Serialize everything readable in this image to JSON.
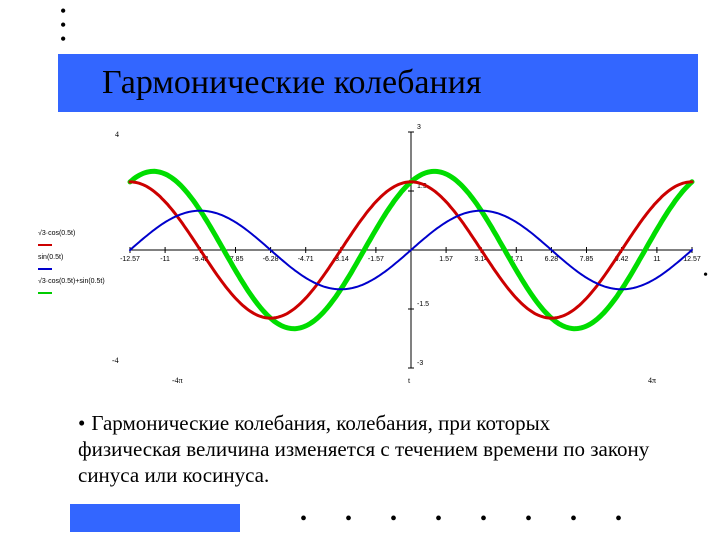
{
  "title": "Гармонические колебания",
  "description": "Гармонические колебания, колебания, при которых физическая величина изменяется с течением времени по закону синуса или косинуса.",
  "legend": {
    "items": [
      {
        "label": "√3·cos(0.5t)",
        "color": "#cc0000"
      },
      {
        "label": "sin(0.5t)",
        "color": "#0000cc"
      },
      {
        "label": "√3·cos(0.5t)+sin(0.5t)",
        "color": "#00cc00"
      }
    ]
  },
  "chart": {
    "type": "line",
    "xlim": [
      -12.57,
      12.57
    ],
    "ylim": [
      -3,
      3
    ],
    "xtick_labels": [
      "-12.57",
      "-11",
      "-9.42",
      "-7.85",
      "-6.28",
      "-4.71",
      "-3.14",
      "-1.57",
      "",
      "1.57",
      "3.14",
      "4.71",
      "6.28",
      "7.85",
      "9.42",
      "11",
      "12.57"
    ],
    "xtick_positions": [
      -12.57,
      -11,
      -9.42,
      -7.85,
      -6.28,
      -4.71,
      -3.14,
      -1.57,
      0,
      1.57,
      3.14,
      4.71,
      6.28,
      7.85,
      9.42,
      11,
      12.57
    ],
    "ytick_labels": [
      "-3",
      "-1.5",
      "",
      "1.5",
      "3"
    ],
    "ytick_positions": [
      -3,
      -1.5,
      0,
      1.5,
      3
    ],
    "axis_color": "#000000",
    "tick_fontsize": 7,
    "background": "#ffffff",
    "x_axis_bottom_label_left": "-4π",
    "x_axis_bottom_label_center": "t",
    "x_axis_bottom_label_right": "4π",
    "y_label_corner": "-4",
    "series": [
      {
        "name": "red",
        "color": "#cc0000",
        "width": 3,
        "formula": "sqrt3*cos(0.5t)",
        "amplitude": 1.732,
        "freq": 0.5,
        "phase_cos": true
      },
      {
        "name": "blue",
        "color": "#0000cc",
        "width": 2,
        "formula": "sin(0.5t)",
        "amplitude": 1.0,
        "freq": 0.5,
        "phase_cos": false
      },
      {
        "name": "green",
        "color": "#00dd00",
        "width": 5,
        "formula": "sqrt3*cos(0.5t)+sin(0.5t)",
        "sum_of": [
          "red",
          "blue"
        ]
      }
    ]
  },
  "colors": {
    "title_bg": "#3366ff",
    "page_bg": "#ffffff"
  }
}
